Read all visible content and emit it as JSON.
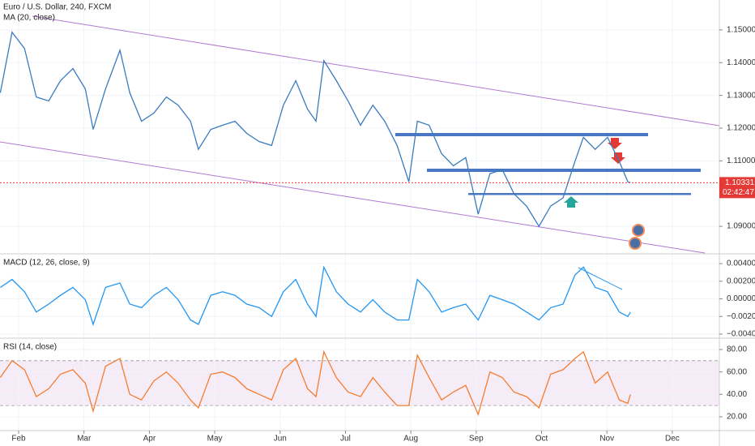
{
  "chart_data": [
    {
      "type": "line",
      "title": "Euro / U.S. Dollar, 240, FXCM",
      "subtitle": "MA (20, close)",
      "x": [
        1.72,
        1.9,
        2.09,
        2.27,
        2.46,
        2.64,
        2.83,
        3.02,
        3.14,
        3.33,
        3.55,
        3.7,
        3.88,
        4.07,
        4.26,
        4.44,
        4.63,
        4.75,
        4.94,
        5.12,
        5.31,
        5.49,
        5.68,
        5.87,
        6.05,
        6.24,
        6.42,
        6.55,
        6.67,
        6.86,
        7.04,
        7.23,
        7.42,
        7.6,
        7.79,
        7.97,
        8.1,
        8.28,
        8.47,
        8.65,
        8.84,
        9.03,
        9.21,
        9.4,
        9.58,
        9.77,
        9.96,
        10.14,
        10.33,
        10.51,
        10.64,
        10.82,
        11.01,
        11.19,
        11.32,
        11.36
      ],
      "values": [
        1.1308,
        1.1493,
        1.1443,
        1.1295,
        1.1283,
        1.1345,
        1.1382,
        1.132,
        1.1196,
        1.132,
        1.1438,
        1.1308,
        1.1221,
        1.1246,
        1.1295,
        1.127,
        1.1221,
        1.1135,
        1.1196,
        1.1209,
        1.1221,
        1.1184,
        1.1159,
        1.1147,
        1.127,
        1.1345,
        1.1258,
        1.1221,
        1.1406,
        1.1345,
        1.1283,
        1.1209,
        1.127,
        1.1221,
        1.1147,
        1.1036,
        1.1221,
        1.1209,
        1.1122,
        1.1085,
        1.111,
        1.0937,
        1.1061,
        1.1073,
        1.0999,
        1.0962,
        1.09,
        1.0962,
        1.0987,
        1.1098,
        1.1172,
        1.1135,
        1.1172,
        1.1098,
        1.1036,
        1.1033
      ],
      "color": "#3a7bbf",
      "last_price": 1.10331,
      "countdown": "02:42:47",
      "xlim": [
        1.715,
        12.72
      ],
      "ylim": [
        1.08185,
        1.15914
      ],
      "yticks": [
        {
          "value": 1.15,
          "label": "1.15000"
        },
        {
          "value": 1.14,
          "label": "1.14000"
        },
        {
          "value": 1.13,
          "label": "1.13000"
        },
        {
          "value": 1.12,
          "label": "1.12000"
        },
        {
          "value": 1.11,
          "label": "1.11000"
        },
        {
          "value": 1.09,
          "label": "1.09000"
        }
      ],
      "grid": true
    },
    {
      "type": "line",
      "title": "MACD (12, 26, close, 9)",
      "x": [
        1.72,
        1.9,
        2.09,
        2.27,
        2.46,
        2.64,
        2.83,
        3.02,
        3.14,
        3.33,
        3.55,
        3.7,
        3.88,
        4.07,
        4.26,
        4.44,
        4.63,
        4.75,
        4.94,
        5.12,
        5.31,
        5.49,
        5.68,
        5.87,
        6.05,
        6.24,
        6.42,
        6.55,
        6.67,
        6.86,
        7.04,
        7.23,
        7.42,
        7.6,
        7.79,
        7.97,
        8.1,
        8.28,
        8.47,
        8.65,
        8.84,
        9.03,
        9.21,
        9.4,
        9.58,
        9.77,
        9.96,
        10.14,
        10.33,
        10.51,
        10.64,
        10.82,
        11.01,
        11.19,
        11.32,
        11.36
      ],
      "values": [
        0.0013,
        0.0022,
        0.0008,
        -0.0015,
        -0.0006,
        0.0004,
        0.0013,
        -0.0001,
        -0.0029,
        0.0013,
        0.0018,
        -0.0006,
        -0.001,
        0.0004,
        0.0013,
        -0.0001,
        -0.0024,
        -0.0029,
        0.0004,
        0.0008,
        0.0004,
        -0.0006,
        -0.001,
        -0.002,
        0.0008,
        0.0022,
        -0.0006,
        -0.002,
        0.0036,
        0.0008,
        -0.0006,
        -0.0015,
        -0.0001,
        -0.0015,
        -0.0024,
        -0.0024,
        0.0022,
        0.0008,
        -0.0015,
        -0.001,
        -0.0006,
        -0.0024,
        0.0004,
        -0.0001,
        -0.0006,
        -0.0015,
        -0.0024,
        -0.001,
        -0.0006,
        0.0027,
        0.0036,
        0.0013,
        0.0008,
        -0.0015,
        -0.002,
        -0.0015
      ],
      "color": "#2196f3",
      "xlim": [
        1.715,
        12.72
      ],
      "ylim": [
        -0.00437,
        0.00502
      ],
      "yticks": [
        {
          "value": 0.004,
          "label": "0.00400"
        },
        {
          "value": 0.002,
          "label": "0.00200"
        },
        {
          "value": 0,
          "label": "0.00000"
        },
        {
          "value": -0.002,
          "label": "−0.00200"
        },
        {
          "value": -0.004,
          "label": "−0.00400"
        }
      ],
      "grid": true
    },
    {
      "type": "line",
      "title": "RSI (14, close)",
      "x": [
        1.72,
        1.9,
        2.09,
        2.27,
        2.46,
        2.64,
        2.83,
        3.02,
        3.14,
        3.33,
        3.55,
        3.7,
        3.88,
        4.07,
        4.26,
        4.44,
        4.63,
        4.75,
        4.94,
        5.12,
        5.31,
        5.49,
        5.68,
        5.87,
        6.05,
        6.24,
        6.42,
        6.55,
        6.67,
        6.86,
        7.04,
        7.23,
        7.42,
        7.6,
        7.79,
        7.97,
        8.1,
        8.28,
        8.47,
        8.65,
        8.84,
        9.03,
        9.21,
        9.4,
        9.58,
        9.77,
        9.96,
        10.14,
        10.33,
        10.51,
        10.64,
        10.82,
        11.01,
        11.19,
        11.32,
        11.36
      ],
      "values": [
        55,
        70,
        62,
        38,
        45,
        58,
        62,
        50,
        25,
        65,
        72,
        40,
        35,
        52,
        60,
        50,
        35,
        28,
        58,
        60,
        55,
        45,
        40,
        35,
        62,
        72,
        45,
        38,
        78,
        55,
        42,
        38,
        55,
        42,
        30,
        30,
        75,
        55,
        35,
        42,
        48,
        22,
        60,
        55,
        42,
        38,
        28,
        58,
        62,
        72,
        78,
        50,
        60,
        35,
        32,
        40
      ],
      "color": "#f57c2d",
      "band": [
        30,
        70
      ],
      "band_color": "#9c27b0",
      "xlim": [
        1.715,
        12.72
      ],
      "ylim": [
        8.4,
        89.4
      ],
      "yticks": [
        {
          "value": 80,
          "label": "80.00"
        },
        {
          "value": 60,
          "label": "60.00"
        },
        {
          "value": 40,
          "label": "40.00"
        },
        {
          "value": 20,
          "label": "20.00"
        }
      ],
      "xticks": [
        {
          "value": 2,
          "label": "Feb"
        },
        {
          "value": 3,
          "label": "Mar"
        },
        {
          "value": 4,
          "label": "Apr"
        },
        {
          "value": 5,
          "label": "May"
        },
        {
          "value": 6,
          "label": "Jun"
        },
        {
          "value": 7,
          "label": "Jul"
        },
        {
          "value": 8,
          "label": "Aug"
        },
        {
          "value": 9,
          "label": "Sep"
        },
        {
          "value": 10,
          "label": "Oct"
        },
        {
          "value": 11,
          "label": "Nov"
        },
        {
          "value": 12,
          "label": "Dec"
        }
      ],
      "grid": true
    }
  ]
}
